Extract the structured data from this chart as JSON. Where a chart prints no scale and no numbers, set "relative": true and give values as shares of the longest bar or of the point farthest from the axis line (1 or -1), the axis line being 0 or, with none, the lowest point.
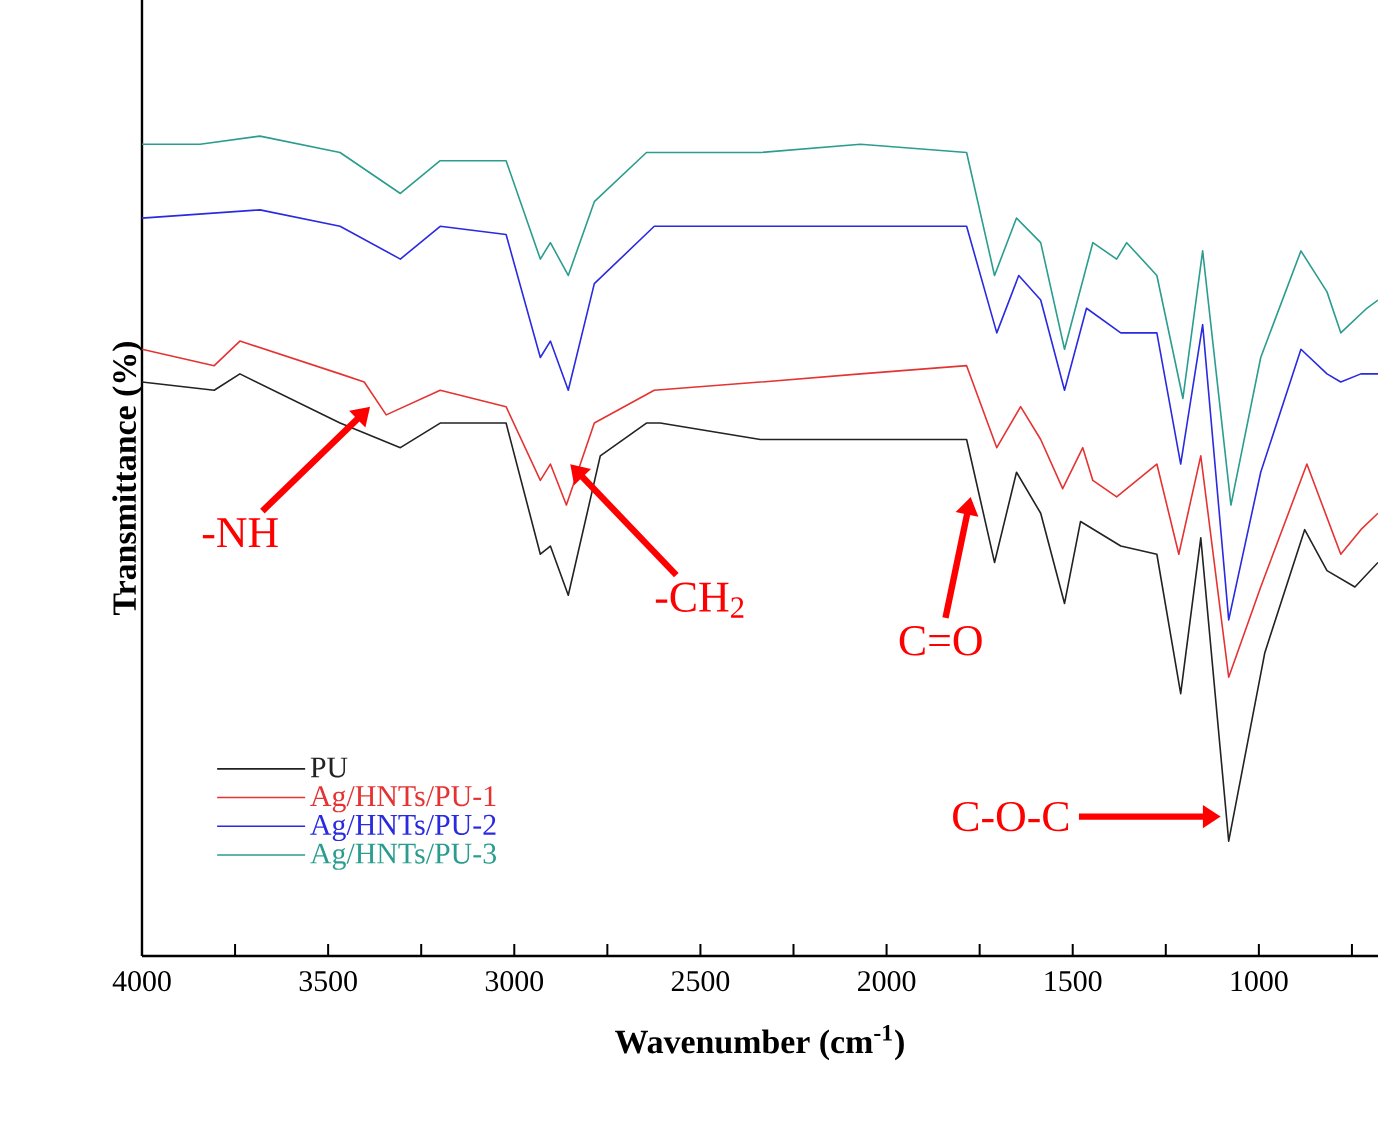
{
  "chart_data": {
    "type": "line",
    "xlabel": "Wavenumber (cm$^{-1}$)",
    "ylabel": "Transmittance (%)",
    "relative": true,
    "marker": "none",
    "legend": "bottom left",
    "xlim": [
      4000,
      680
    ],
    "xticks": [
      4000,
      {
        "value": 3750,
        "label": null
      },
      3500,
      {
        "value": 3250,
        "label": null
      },
      3000,
      {
        "value": 2750,
        "label": null
      },
      2500,
      {
        "value": 2250,
        "label": null
      },
      2000,
      {
        "value": 1750,
        "label": null
      },
      1500,
      {
        "value": 1250,
        "label": null
      },
      1000,
      {
        "value": 750,
        "label": null
      }
    ],
    "series": [
      {
        "name": "PU",
        "color": "#222222",
        "x": [
          4000,
          3806,
          3737,
          3468,
          3306,
          3199,
          3022,
          2930,
          2903,
          2855,
          2769,
          2645,
          2608,
          2339,
          1785,
          1710,
          1651,
          1586,
          1522,
          1479,
          1371,
          1274,
          1210,
          1156,
          1081,
          984,
          877,
          817,
          742,
          680
        ],
        "values": [
          0.7,
          0.69,
          0.71,
          0.65,
          0.62,
          0.65,
          0.65,
          0.49,
          0.5,
          0.44,
          0.61,
          0.65,
          0.65,
          0.63,
          0.63,
          0.48,
          0.59,
          0.54,
          0.43,
          0.53,
          0.5,
          0.49,
          0.32,
          0.51,
          0.14,
          0.37,
          0.52,
          0.47,
          0.45,
          0.48
        ]
      },
      {
        "name": "Ag/HNTs/PU-1",
        "color": "#e53333",
        "x": [
          4000,
          3806,
          3737,
          3468,
          3403,
          3344,
          3199,
          3022,
          2930,
          2903,
          2860,
          2785,
          2624,
          2339,
          2070,
          1785,
          1704,
          1640,
          1586,
          1527,
          1473,
          1446,
          1382,
          1274,
          1215,
          1156,
          1081,
          995,
          871,
          780,
          726,
          680
        ],
        "values": [
          0.74,
          0.72,
          0.75,
          0.71,
          0.7,
          0.66,
          0.69,
          0.67,
          0.58,
          0.6,
          0.55,
          0.65,
          0.69,
          0.7,
          0.71,
          0.72,
          0.62,
          0.67,
          0.63,
          0.57,
          0.62,
          0.58,
          0.56,
          0.6,
          0.49,
          0.61,
          0.34,
          0.45,
          0.6,
          0.49,
          0.52,
          0.54
        ]
      },
      {
        "name": "Ag/HNTs/PU-2",
        "color": "#2a2ae0",
        "x": [
          4000,
          3683,
          3468,
          3306,
          3199,
          3022,
          2930,
          2903,
          2855,
          2785,
          2624,
          2339,
          1785,
          1704,
          1645,
          1586,
          1522,
          1463,
          1371,
          1274,
          1210,
          1151,
          1081,
          995,
          887,
          817,
          780,
          726,
          680
        ],
        "values": [
          0.9,
          0.91,
          0.89,
          0.85,
          0.89,
          0.88,
          0.73,
          0.75,
          0.69,
          0.82,
          0.89,
          0.89,
          0.89,
          0.76,
          0.83,
          0.8,
          0.69,
          0.79,
          0.76,
          0.76,
          0.6,
          0.77,
          0.41,
          0.59,
          0.74,
          0.71,
          0.7,
          0.71,
          0.71
        ]
      },
      {
        "name": "Ag/HNTs/PU-3",
        "color": "#2a9d8f",
        "x": [
          4000,
          3844,
          3683,
          3468,
          3306,
          3199,
          3022,
          2930,
          2903,
          2855,
          2785,
          2645,
          2339,
          2070,
          1785,
          1710,
          1651,
          1586,
          1522,
          1446,
          1382,
          1355,
          1274,
          1204,
          1151,
          1075,
          995,
          887,
          817,
          780,
          710,
          680
        ],
        "values": [
          0.99,
          0.99,
          1.0,
          0.98,
          0.93,
          0.97,
          0.97,
          0.85,
          0.87,
          0.83,
          0.92,
          0.98,
          0.98,
          0.99,
          0.98,
          0.83,
          0.9,
          0.87,
          0.74,
          0.87,
          0.85,
          0.87,
          0.83,
          0.68,
          0.86,
          0.55,
          0.73,
          0.86,
          0.81,
          0.76,
          0.79,
          0.8
        ]
      }
    ],
    "annotations": [
      {
        "text": "-NH",
        "x": 3387,
        "y": 0.67
      },
      {
        "text": "-CH$_{2}$",
        "x": 2850,
        "y": 0.6
      },
      {
        "text": "C=O",
        "x": 1774,
        "y": 0.56
      },
      {
        "text": "C-O-C",
        "x": 1102,
        "y": 0.17
      }
    ]
  }
}
